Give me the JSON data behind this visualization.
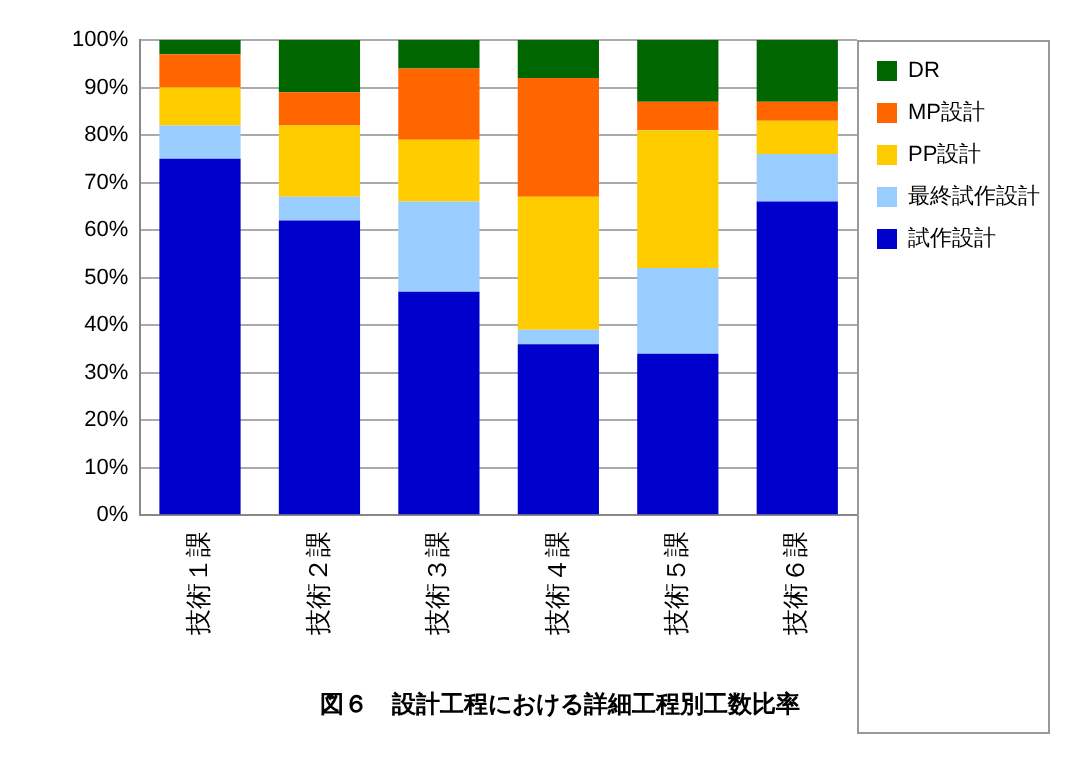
{
  "chart_data": {
    "type": "bar",
    "title": "図６　設計工程における詳細工程別工数比率",
    "categories": [
      "技術１課",
      "技術２課",
      "技術３課",
      "技術４課",
      "技術５課",
      "技術６課"
    ],
    "stacked": true,
    "series": [
      {
        "name": "試作設計",
        "color": "#0000cc",
        "values": [
          75,
          62,
          47,
          36,
          34,
          66
        ]
      },
      {
        "name": "最終試作設計",
        "color": "#99ccff",
        "values": [
          7,
          5,
          19,
          3,
          18,
          10
        ]
      },
      {
        "name": "PP設計",
        "color": "#ffcc00",
        "values": [
          8,
          15,
          13,
          28,
          29,
          7
        ]
      },
      {
        "name": "MP設計",
        "color": "#ff6600",
        "values": [
          7,
          7,
          15,
          25,
          6,
          4
        ]
      },
      {
        "name": "DR",
        "color": "#006600",
        "values": [
          3,
          11,
          6,
          8,
          13,
          13
        ]
      }
    ],
    "ylim": [
      0,
      100
    ],
    "yticks": [
      {
        "value": 0,
        "label": "0%"
      },
      {
        "value": 10,
        "label": "10%"
      },
      {
        "value": 20,
        "label": "20%"
      },
      {
        "value": 30,
        "label": "30%"
      },
      {
        "value": 40,
        "label": "40%"
      },
      {
        "value": 50,
        "label": "50%"
      },
      {
        "value": 60,
        "label": "60%"
      },
      {
        "value": 70,
        "label": "70%"
      },
      {
        "value": 80,
        "label": "80%"
      },
      {
        "value": 90,
        "label": "90%"
      },
      {
        "value": 100,
        "label": "100%"
      }
    ],
    "grid": "y",
    "legend": "right"
  }
}
